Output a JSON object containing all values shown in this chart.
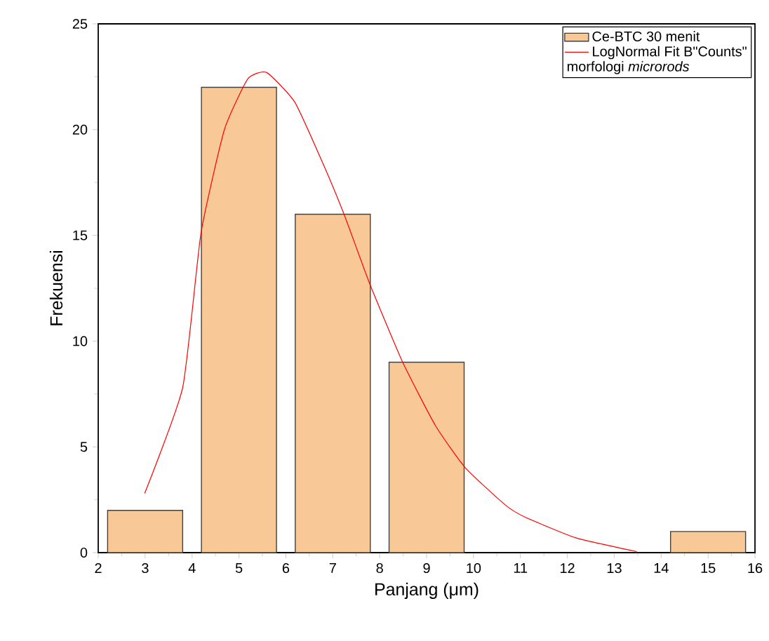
{
  "chart_data": {
    "type": "histogram",
    "xlabel": "Panjang (μm)",
    "ylabel": "Frekuensi",
    "legend_title": "morfologi *microrods*",
    "legend": "top right",
    "bins": [
      2,
      4,
      6,
      8,
      10,
      12,
      14,
      16
    ],
    "series": [
      {
        "name": "Ce-BTC 30 menit",
        "color": "#f9c897",
        "values": [
          2,
          22,
          16,
          9,
          0,
          0,
          1
        ]
      },
      {
        "name": "LogNormal Fit B\"Counts\"",
        "type": "line",
        "color": "#ff0000",
        "x": [
          2.99,
          3.8,
          4.19,
          4.69,
          5.19,
          5.59,
          6.19,
          6.79,
          7.24,
          7.79,
          8.49,
          9.19,
          9.83,
          10.68,
          11.08,
          12.18,
          13.48
        ],
        "values": [
          2.8,
          7.8,
          15.1,
          20.0,
          22.4,
          22.7,
          21.3,
          18.4,
          16.0,
          12.7,
          9.0,
          6.0,
          4.0,
          2.25,
          1.7,
          0.7,
          0.05
        ]
      }
    ],
    "xlim": [
      2,
      16
    ],
    "xticks": [
      2,
      3,
      4,
      5,
      6,
      7,
      8,
      9,
      10,
      11,
      12,
      13,
      14,
      15,
      16
    ],
    "ylim": [
      0,
      25
    ],
    "yticks": [
      0,
      5,
      10,
      15,
      20,
      25
    ]
  }
}
